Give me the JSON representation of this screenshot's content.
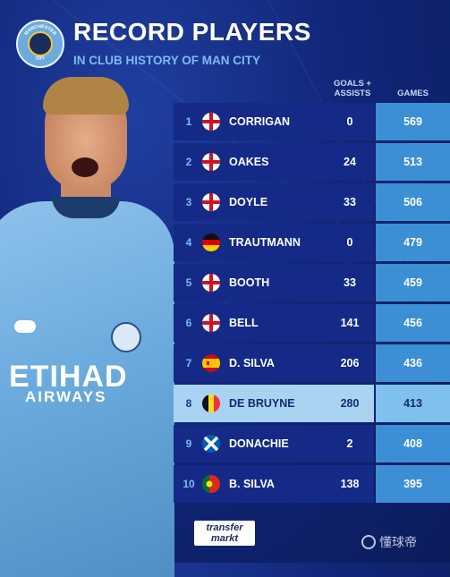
{
  "header": {
    "title": "RECORD PLAYERS",
    "subtitle": "IN CLUB HISTORY OF MAN CITY",
    "badge_top": "MANCHESTER",
    "badge_bottom": "CITY"
  },
  "columns": {
    "goals_assists_line1": "GOALS +",
    "goals_assists_line2": "ASSISTS",
    "games": "GAMES"
  },
  "rows": [
    {
      "rank": "1",
      "flag": "england-flag-icon",
      "name": "CORRIGAN",
      "goals_assists": "0",
      "games": "569"
    },
    {
      "rank": "2",
      "flag": "england-flag-icon",
      "name": "OAKES",
      "goals_assists": "24",
      "games": "513"
    },
    {
      "rank": "3",
      "flag": "england-flag-icon",
      "name": "DOYLE",
      "goals_assists": "33",
      "games": "506"
    },
    {
      "rank": "4",
      "flag": "germany-flag-icon",
      "name": "TRAUTMANN",
      "goals_assists": "0",
      "games": "479"
    },
    {
      "rank": "5",
      "flag": "england-flag-icon",
      "name": "BOOTH",
      "goals_assists": "33",
      "games": "459"
    },
    {
      "rank": "6",
      "flag": "england-flag-icon",
      "name": "BELL",
      "goals_assists": "141",
      "games": "456"
    },
    {
      "rank": "7",
      "flag": "spain-flag-icon",
      "name": "D. SILVA",
      "goals_assists": "206",
      "games": "436"
    },
    {
      "rank": "8",
      "flag": "belgium-flag-icon",
      "name": "DE BRUYNE",
      "goals_assists": "280",
      "games": "413",
      "highlighted": true
    },
    {
      "rank": "9",
      "flag": "scotland-flag-icon",
      "name": "DONACHIE",
      "goals_assists": "2",
      "games": "408"
    },
    {
      "rank": "10",
      "flag": "portugal-flag-icon",
      "name": "B. SILVA",
      "goals_assists": "138",
      "games": "395"
    }
  ],
  "player_image": {
    "shirt_sponsor_line1": "ETIHAD",
    "shirt_sponsor_line2": "AIRWAYS"
  },
  "footer": {
    "logo_line1": "transfer",
    "logo_line2": "markt",
    "watermark": "懂球帝"
  },
  "colors": {
    "background": "#12277a",
    "row": "#142a86",
    "games_cell": "#3c8fd4",
    "highlight_row": "#a9d3f2",
    "accent_text": "#7fb9f0"
  }
}
